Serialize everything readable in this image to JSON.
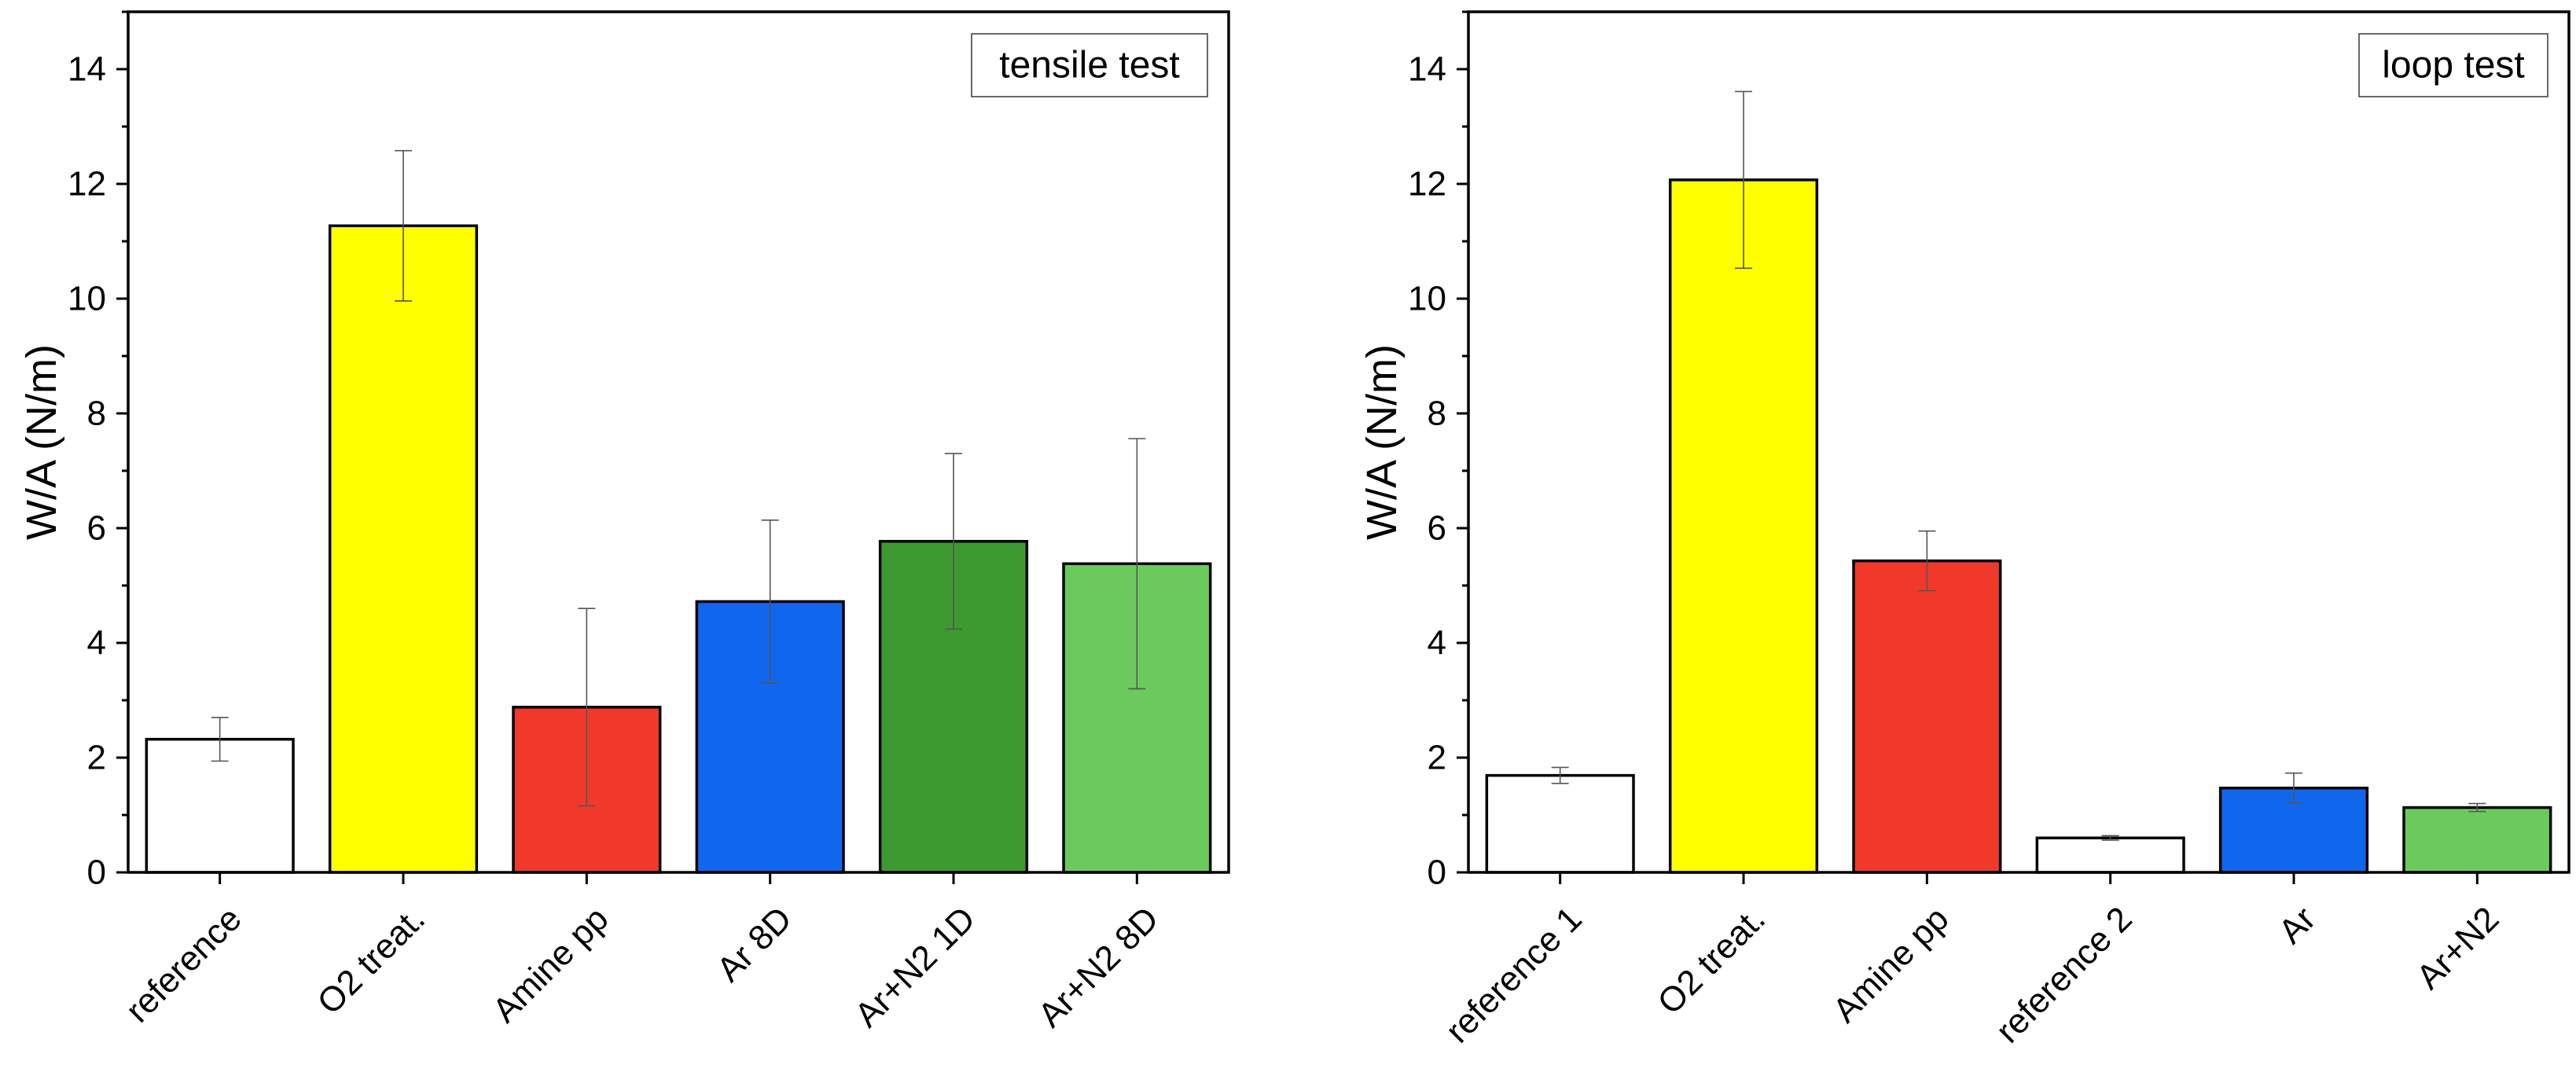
{
  "chart_data": [
    {
      "type": "bar",
      "title": "",
      "legend_label": "tensile test",
      "legend_position": "top-right",
      "ylabel": "W/A (N/m)",
      "xlabel": "",
      "ylim": [
        0,
        15
      ],
      "yticks": [
        0,
        2,
        4,
        6,
        8,
        10,
        12,
        14
      ],
      "categories": [
        "reference",
        "O2 treat.",
        "Amine pp",
        "Ar 8D",
        "Ar+N2 1D",
        "Ar+N2 8D"
      ],
      "values": [
        2.32,
        11.27,
        2.88,
        4.72,
        5.77,
        5.38
      ],
      "errors": [
        0.38,
        1.31,
        1.72,
        1.42,
        1.53,
        2.18
      ],
      "colors": [
        "#ffffff",
        "#ffff00",
        "#f0392b",
        "#1166ee",
        "#3d9a30",
        "#6acb5c"
      ]
    },
    {
      "type": "bar",
      "title": "",
      "legend_label": "loop test",
      "legend_position": "top-right",
      "ylabel": "W/A (N/m)",
      "xlabel": "",
      "ylim": [
        0,
        15
      ],
      "yticks": [
        0,
        2,
        4,
        6,
        8,
        10,
        12,
        14
      ],
      "categories": [
        "reference 1",
        "O2 treat.",
        "Amine pp",
        "reference 2",
        "Ar",
        "Ar+N2"
      ],
      "values": [
        1.69,
        12.07,
        5.43,
        0.6,
        1.47,
        1.13
      ],
      "errors": [
        0.14,
        1.54,
        0.52,
        0.04,
        0.26,
        0.07
      ],
      "colors": [
        "#ffffff",
        "#ffff00",
        "#f0392b",
        "#ffffff",
        "#1166ee",
        "#6acb5c"
      ]
    }
  ]
}
